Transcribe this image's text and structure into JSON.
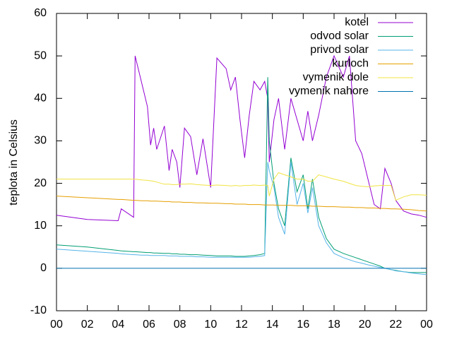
{
  "chart_data": {
    "type": "line",
    "ylabel": "teplota in Celsius",
    "x": [
      0,
      2,
      4,
      4.2,
      5,
      5.1,
      5.5,
      5.9,
      6.1,
      6.3,
      6.5,
      7,
      7.3,
      7.5,
      7.8,
      8,
      8.3,
      8.7,
      9.1,
      9.5,
      10,
      10.4,
      11,
      11.3,
      11.6,
      11.9,
      12.2,
      12.5,
      12.8,
      13.2,
      13.5,
      13.7,
      13.8,
      14.1,
      14.4,
      14.8,
      15.2,
      15.6,
      16,
      16.3,
      16.6,
      17,
      17.5,
      18,
      18.6,
      19,
      19.4,
      19.8,
      20.2,
      20.6,
      21,
      21.3,
      21.7,
      22,
      22.5,
      23,
      23.5,
      24
    ],
    "series": [
      {
        "name": "kotel",
        "color": "#9400d3",
        "values": [
          12.5,
          11.5,
          11.2,
          14,
          12,
          50,
          44,
          38,
          29,
          33,
          28,
          33.5,
          23,
          28,
          25,
          19,
          33,
          31,
          22,
          30.5,
          19,
          49.5,
          47,
          42,
          45,
          35,
          26,
          36,
          44,
          42,
          44,
          40,
          25,
          35,
          40,
          28,
          40,
          35,
          30,
          37,
          30,
          36,
          45,
          50,
          45,
          50,
          30,
          27,
          21,
          15,
          14,
          23.5,
          20,
          16,
          13.5,
          12.8,
          12.5,
          12
        ]
      },
      {
        "name": "odvod solar",
        "color": "#009e73",
        "values": [
          5.5,
          5.0,
          4.2,
          4.1,
          3.9,
          3.9,
          3.8,
          3.7,
          3.7,
          3.6,
          3.6,
          3.5,
          3.5,
          3.4,
          3.4,
          3.3,
          3.3,
          3.2,
          3.2,
          3.1,
          3.0,
          2.9,
          2.9,
          2.9,
          2.8,
          2.8,
          2.8,
          2.9,
          3.0,
          3.2,
          3.5,
          45,
          30,
          20,
          14,
          10,
          26,
          18,
          22,
          14,
          21,
          12,
          7,
          4.5,
          3.5,
          3,
          2.5,
          2,
          1.5,
          1,
          0.5,
          0,
          -0.3,
          -0.5,
          -0.8,
          -1,
          -1,
          -1
        ]
      },
      {
        "name": "privod solar",
        "color": "#56b4e9",
        "values": [
          4.5,
          4.0,
          3.5,
          3.4,
          3.2,
          3.2,
          3.1,
          3.1,
          3.0,
          3.0,
          3.0,
          3.0,
          2.9,
          2.9,
          2.9,
          2.8,
          2.8,
          2.8,
          2.7,
          2.7,
          2.6,
          2.6,
          2.6,
          2.6,
          2.6,
          2.6,
          2.6,
          2.6,
          2.7,
          2.8,
          3.0,
          25,
          23,
          19,
          12,
          8,
          25,
          15,
          20,
          13,
          19,
          10,
          6,
          3.5,
          2.5,
          2,
          1.5,
          1.2,
          0.8,
          0.5,
          0.2,
          0,
          -0.3,
          -0.6,
          -0.8,
          -1.1,
          -1.3,
          -1.5
        ]
      },
      {
        "name": "kurloch",
        "color": "#e69f00",
        "values": [
          17,
          16.6,
          16.2,
          16.2,
          16,
          16,
          15.9,
          15.9,
          15.8,
          15.8,
          15.8,
          15.7,
          15.7,
          15.6,
          15.6,
          15.6,
          15.5,
          15.5,
          15.4,
          15.4,
          15.3,
          15.3,
          15.2,
          15.2,
          15.1,
          15.1,
          15.1,
          15,
          15,
          15,
          14.9,
          14.9,
          14.9,
          14.9,
          14.8,
          14.8,
          14.8,
          14.7,
          14.7,
          14.7,
          14.6,
          14.6,
          14.5,
          14.5,
          14.4,
          14.4,
          14.3,
          14.3,
          14.2,
          14.2,
          14.1,
          14.1,
          14,
          14,
          13.9,
          13.8,
          13.6,
          13.5
        ]
      },
      {
        "name": "vymenik dole",
        "color": "#f0e442",
        "values": [
          21,
          21,
          21,
          21,
          21,
          21,
          20.8,
          20.7,
          20.6,
          20.5,
          20.3,
          19.8,
          19.8,
          19.7,
          19.7,
          19.8,
          19.8,
          19.9,
          19.7,
          19.6,
          19.5,
          19.6,
          19.5,
          19.4,
          19.5,
          19.4,
          19.5,
          19.5,
          19.6,
          19.5,
          19.6,
          19.5,
          17,
          21,
          22.5,
          22,
          21.5,
          21,
          21,
          20.5,
          20.5,
          22,
          21.5,
          21,
          20.5,
          20,
          19.5,
          19.3,
          19.2,
          19.4,
          19.5,
          19.5,
          19.5,
          16,
          16.8,
          17.3,
          17.3,
          17.2
        ]
      },
      {
        "name": "vymenik nahore",
        "color": "#0072b2",
        "values": [
          0,
          0,
          0,
          0,
          0,
          0,
          0,
          0,
          0,
          0,
          0,
          0,
          0,
          0,
          0,
          0,
          0,
          0,
          0,
          0,
          0,
          0,
          0,
          0,
          0,
          0,
          0,
          0,
          0,
          0,
          0,
          0,
          0,
          0,
          0,
          0,
          0,
          0,
          0,
          0,
          0,
          0,
          0,
          0,
          0,
          0,
          0,
          0,
          0,
          0,
          0,
          0,
          0,
          0,
          0,
          0,
          0,
          0
        ]
      }
    ],
    "xlim": [
      0,
      24
    ],
    "xticks": [
      {
        "value": 0,
        "label": "00"
      },
      {
        "value": 2,
        "label": "02"
      },
      {
        "value": 4,
        "label": "04"
      },
      {
        "value": 6,
        "label": "06"
      },
      {
        "value": 8,
        "label": "08"
      },
      10,
      12,
      14,
      16,
      18,
      20,
      22,
      {
        "value": 24,
        "label": "00"
      }
    ],
    "ylim": [
      -10,
      60
    ],
    "yticks": [
      -10,
      0,
      10,
      20,
      30,
      40,
      50,
      60
    ],
    "grid": false,
    "legend": "top right"
  }
}
